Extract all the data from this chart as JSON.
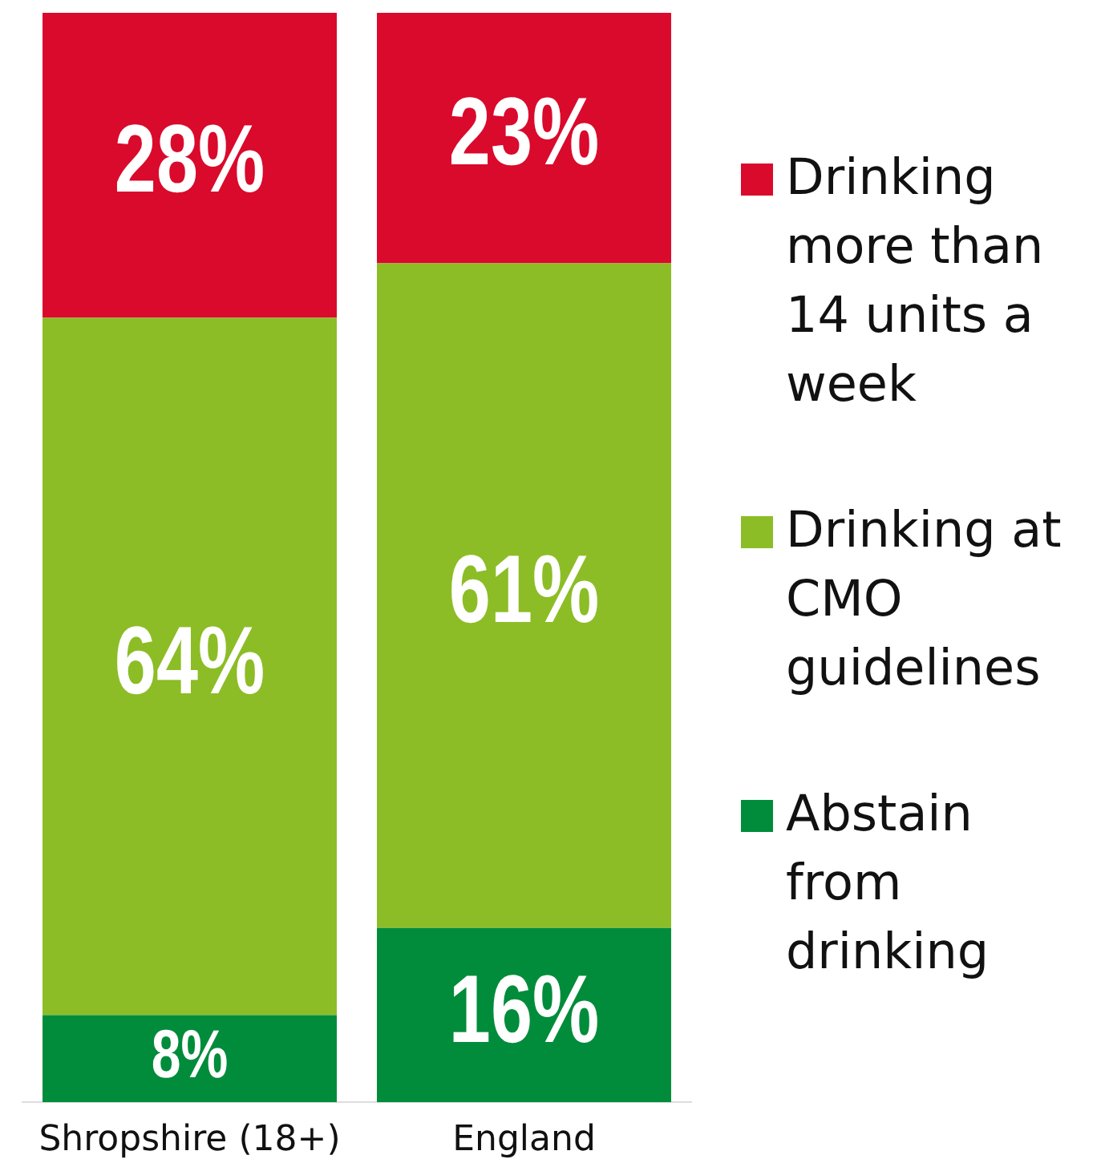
{
  "chart_data": {
    "type": "bar",
    "stacked": true,
    "categories": [
      "Shropshire (18+)",
      "England"
    ],
    "series": [
      {
        "name": "Abstain from drinking",
        "color": "#008c3a",
        "values": [
          8,
          16
        ],
        "value_labels": [
          "8%",
          "16%"
        ]
      },
      {
        "name": "Drinking at CMO guidelines",
        "color": "#8cbd26",
        "values": [
          64,
          61
        ],
        "value_labels": [
          "64%",
          "61%"
        ]
      },
      {
        "name": "Drinking more than 14 units a week",
        "color": "#d90a2c",
        "values": [
          28,
          23
        ],
        "value_labels": [
          "28%",
          "23%"
        ]
      }
    ],
    "tick_labels": "x",
    "legend": "right"
  }
}
